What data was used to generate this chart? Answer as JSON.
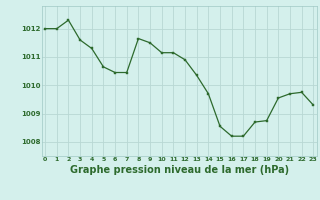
{
  "x": [
    0,
    1,
    2,
    3,
    4,
    5,
    6,
    7,
    8,
    9,
    10,
    11,
    12,
    13,
    14,
    15,
    16,
    17,
    18,
    19,
    20,
    21,
    22,
    23
  ],
  "y": [
    1012.0,
    1012.0,
    1012.3,
    1011.6,
    1011.3,
    1010.65,
    1010.45,
    1010.45,
    1011.65,
    1011.5,
    1011.15,
    1011.15,
    1010.9,
    1010.35,
    1009.7,
    1008.55,
    1008.2,
    1008.2,
    1008.7,
    1008.75,
    1009.55,
    1009.7,
    1009.75,
    1009.3
  ],
  "line_color": "#2d6a2d",
  "marker_color": "#2d6a2d",
  "bg_color": "#d4f0ec",
  "grid_color": "#b8d8d4",
  "xlabel": "Graphe pression niveau de la mer (hPa)",
  "xlabel_fontsize": 7,
  "tick_label_color": "#2d6a2d",
  "yticks": [
    1008,
    1009,
    1010,
    1011,
    1012
  ],
  "ylim": [
    1007.5,
    1012.8
  ],
  "xlim": [
    -0.3,
    23.3
  ],
  "xticks": [
    0,
    1,
    2,
    3,
    4,
    5,
    6,
    7,
    8,
    9,
    10,
    11,
    12,
    13,
    14,
    15,
    16,
    17,
    18,
    19,
    20,
    21,
    22,
    23
  ]
}
